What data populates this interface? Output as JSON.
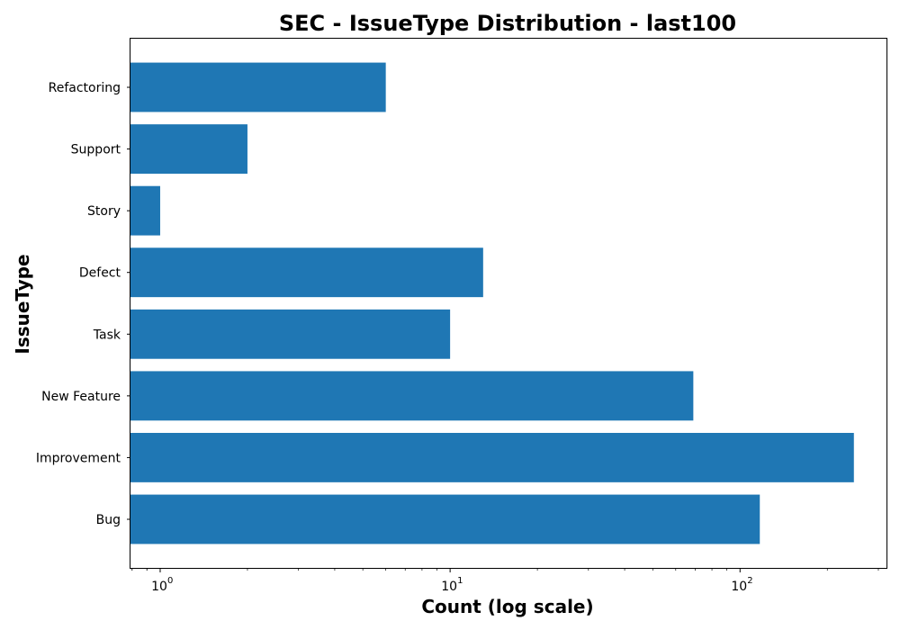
{
  "chart_data": {
    "type": "bar",
    "orientation": "horizontal",
    "title": "SEC - IssueType Distribution - last100",
    "xlabel": "Count (log scale)",
    "ylabel": "IssueType",
    "x_scale": "log",
    "xlim": [
      0.79,
      320
    ],
    "categories": [
      "Bug",
      "Improvement",
      "New Feature",
      "Task",
      "Defect",
      "Story",
      "Support",
      "Refactoring"
    ],
    "values": [
      117,
      247,
      69,
      10,
      13,
      1,
      2,
      6
    ],
    "x_ticks": [
      {
        "base": "10",
        "exp": "0",
        "value": 1
      },
      {
        "base": "10",
        "exp": "1",
        "value": 10
      },
      {
        "base": "10",
        "exp": "2",
        "value": 100
      }
    ],
    "bar_color": "#1f77b4",
    "grid": false,
    "legend": "none"
  }
}
